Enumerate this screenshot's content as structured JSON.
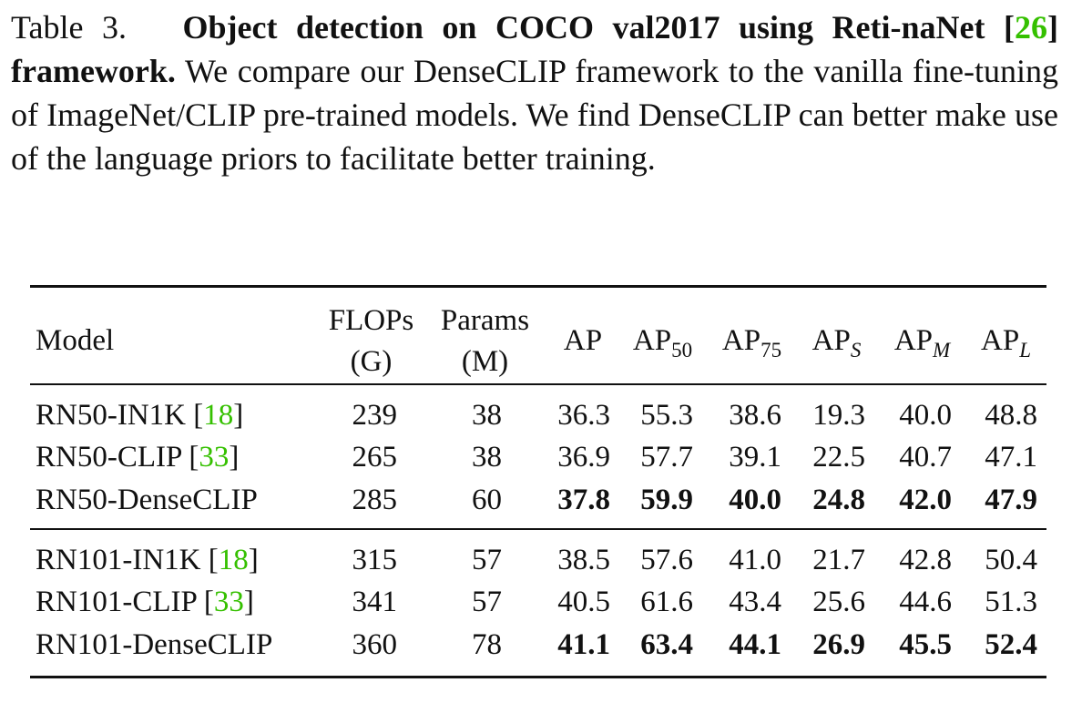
{
  "caption": {
    "label": "Table 3.",
    "bold_title_1": "Object detection on COCO val2017 using Reti-naNet",
    "cite_open": "[",
    "cite_ref": "26",
    "cite_close": "]",
    "bold_title_2": "framework.",
    "body": "We compare our DenseCLIP framework to the vanilla fine-tuning of ImageNet/CLIP pre-trained models. We find DenseCLIP can better make use of the language priors to facilitate better training."
  },
  "table": {
    "headers": {
      "model": "Model",
      "flops_1": "FLOPs",
      "flops_2": "(G)",
      "params_1": "Params",
      "params_2": "(M)",
      "ap": "AP",
      "ap50_base": "AP",
      "ap50_sub": "50",
      "ap75_base": "AP",
      "ap75_sub": "75",
      "aps_base": "AP",
      "aps_sub": "S",
      "apm_base": "AP",
      "apm_sub": "M",
      "apl_base": "AP",
      "apl_sub": "L"
    },
    "groups": [
      {
        "rows": [
          {
            "model": "RN50-IN1K",
            "ref": "18",
            "flops": "239",
            "params": "38",
            "ap": "36.3",
            "ap50": "55.3",
            "ap75": "38.6",
            "aps": "19.3",
            "apm": "40.0",
            "apl": "48.8",
            "bold": false
          },
          {
            "model": "RN50-CLIP",
            "ref": "33",
            "flops": "265",
            "params": "38",
            "ap": "36.9",
            "ap50": "57.7",
            "ap75": "39.1",
            "aps": "22.5",
            "apm": "40.7",
            "apl": "47.1",
            "bold": false
          },
          {
            "model": "RN50-DenseCLIP",
            "ref": "",
            "flops": "285",
            "params": "60",
            "ap": "37.8",
            "ap50": "59.9",
            "ap75": "40.0",
            "aps": "24.8",
            "apm": "42.0",
            "apl": "47.9",
            "bold": true
          }
        ]
      },
      {
        "rows": [
          {
            "model": "RN101-IN1K",
            "ref": "18",
            "flops": "315",
            "params": "57",
            "ap": "38.5",
            "ap50": "57.6",
            "ap75": "41.0",
            "aps": "21.7",
            "apm": "42.8",
            "apl": "50.4",
            "bold": false
          },
          {
            "model": "RN101-CLIP",
            "ref": "33",
            "flops": "341",
            "params": "57",
            "ap": "40.5",
            "ap50": "61.6",
            "ap75": "43.4",
            "aps": "25.6",
            "apm": "44.6",
            "apl": "51.3",
            "bold": false
          },
          {
            "model": "RN101-DenseCLIP",
            "ref": "",
            "flops": "360",
            "params": "78",
            "ap": "41.1",
            "ap50": "63.4",
            "ap75": "44.1",
            "aps": "26.9",
            "apm": "45.5",
            "apl": "52.4",
            "bold": true
          }
        ]
      }
    ]
  },
  "colors": {
    "citation": "#35c000",
    "text": "#111111"
  }
}
